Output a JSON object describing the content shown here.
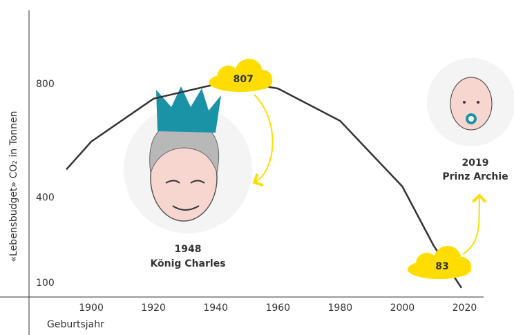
{
  "chart_data": {
    "type": "line",
    "y_label": "«Lebensbudget» CO₂ in Tonnen",
    "x_label": "Geburtsjahr",
    "x": [
      1892,
      1900,
      1920,
      1940,
      1948,
      1960,
      1980,
      2000,
      2010,
      2019
    ],
    "series": [
      {
        "color": "#333333",
        "values": [
          500,
          598,
          749,
          800,
          807,
          785,
          671,
          440,
          233,
          83
        ]
      }
    ],
    "highlights": [
      {
        "index": 4,
        "year": 1948,
        "name": "König Charles"
      },
      {
        "index": 9,
        "year": 2019,
        "name": "Prinz Archie"
      }
    ],
    "cloud_color": "#ffdd00",
    "xlim": [
      1880,
      2035
    ],
    "xticks": [
      1900,
      1920,
      1940,
      1960,
      1980,
      2000,
      2020
    ],
    "ylim": [
      51,
      1060
    ],
    "yticks": [
      100,
      400,
      800
    ],
    "grid": false
  }
}
